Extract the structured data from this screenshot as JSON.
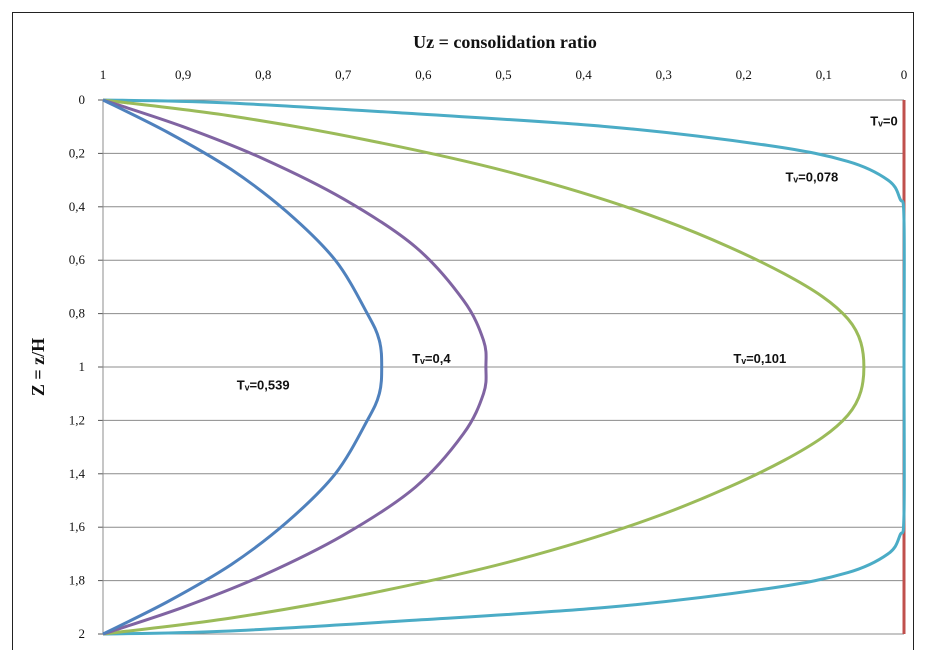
{
  "chart_data": {
    "type": "line",
    "title": "Uz = consolidation ratio",
    "ylabel": "Z = z/H",
    "xlabel": "",
    "x_axis": {
      "position": "top",
      "reversed": true,
      "xlim": [
        1,
        0
      ]
    },
    "y_axis": {
      "reversed": true,
      "ylim": [
        0,
        2
      ]
    },
    "x_ticks": [
      "1",
      "0,9",
      "0,8",
      "0,7",
      "0,6",
      "0,5",
      "0,4",
      "0,3",
      "0,2",
      "0,1",
      "0"
    ],
    "y_ticks": [
      "0",
      "0,2",
      "0,4",
      "0,6",
      "0,8",
      "1",
      "1,2",
      "1,4",
      "1,6",
      "1,8",
      "2"
    ],
    "grid": "horizontal",
    "series": [
      {
        "name": "Tᵥ=0",
        "color": "#c0504d",
        "points": [
          [
            0,
            0
          ],
          [
            0,
            2
          ]
        ]
      },
      {
        "name": "Tᵥ=0,078",
        "color": "#4bacc6",
        "points": [
          [
            1,
            0
          ],
          [
            0.85,
            0.01
          ],
          [
            0.62,
            0.05
          ],
          [
            0.37,
            0.1
          ],
          [
            0.17,
            0.17
          ],
          [
            0.07,
            0.23
          ],
          [
            0.02,
            0.3
          ],
          [
            0.005,
            0.37
          ],
          [
            0,
            0.45
          ],
          [
            0,
            1
          ],
          [
            0,
            1.55
          ],
          [
            0.005,
            1.63
          ],
          [
            0.02,
            1.7
          ],
          [
            0.07,
            1.77
          ],
          [
            0.17,
            1.83
          ],
          [
            0.37,
            1.9
          ],
          [
            0.62,
            1.95
          ],
          [
            0.85,
            1.99
          ],
          [
            1,
            2
          ]
        ]
      },
      {
        "name": "Tᵥ=0,101",
        "color": "#9bbb59",
        "points": [
          [
            1,
            0
          ],
          [
            0.84,
            0.06
          ],
          [
            0.67,
            0.15
          ],
          [
            0.48,
            0.28
          ],
          [
            0.3,
            0.45
          ],
          [
            0.15,
            0.65
          ],
          [
            0.07,
            0.82
          ],
          [
            0.05,
            1
          ],
          [
            0.07,
            1.18
          ],
          [
            0.15,
            1.35
          ],
          [
            0.3,
            1.55
          ],
          [
            0.48,
            1.72
          ],
          [
            0.67,
            1.85
          ],
          [
            0.84,
            1.94
          ],
          [
            1,
            2
          ]
        ]
      },
      {
        "name": "Tᵥ=0,4",
        "color": "#8064a2",
        "points": [
          [
            1,
            0
          ],
          [
            0.9,
            0.1
          ],
          [
            0.8,
            0.22
          ],
          [
            0.7,
            0.37
          ],
          [
            0.61,
            0.55
          ],
          [
            0.55,
            0.75
          ],
          [
            0.525,
            0.9
          ],
          [
            0.522,
            1
          ],
          [
            0.525,
            1.1
          ],
          [
            0.55,
            1.25
          ],
          [
            0.61,
            1.45
          ],
          [
            0.7,
            1.63
          ],
          [
            0.8,
            1.78
          ],
          [
            0.9,
            1.9
          ],
          [
            1,
            2
          ]
        ]
      },
      {
        "name": "Tᵥ=0,539",
        "color": "#4f81bd",
        "points": [
          [
            1,
            0
          ],
          [
            0.92,
            0.12
          ],
          [
            0.84,
            0.26
          ],
          [
            0.77,
            0.42
          ],
          [
            0.71,
            0.6
          ],
          [
            0.67,
            0.8
          ],
          [
            0.655,
            0.9
          ],
          [
            0.652,
            1
          ],
          [
            0.655,
            1.1
          ],
          [
            0.67,
            1.2
          ],
          [
            0.71,
            1.4
          ],
          [
            0.77,
            1.58
          ],
          [
            0.84,
            1.74
          ],
          [
            0.92,
            1.88
          ],
          [
            1,
            2
          ]
        ]
      }
    ],
    "annotations": [
      {
        "text": "Tᵥ=0",
        "x": 0.025,
        "y": 0.08
      },
      {
        "text": "Tᵥ=0,078",
        "x": 0.115,
        "y": 0.29
      },
      {
        "text": "Tᵥ=0,101",
        "x": 0.18,
        "y": 0.97
      },
      {
        "text": "Tᵥ=0,4",
        "x": 0.59,
        "y": 0.97
      },
      {
        "text": "Tᵥ=0,539",
        "x": 0.8,
        "y": 1.07
      }
    ]
  }
}
